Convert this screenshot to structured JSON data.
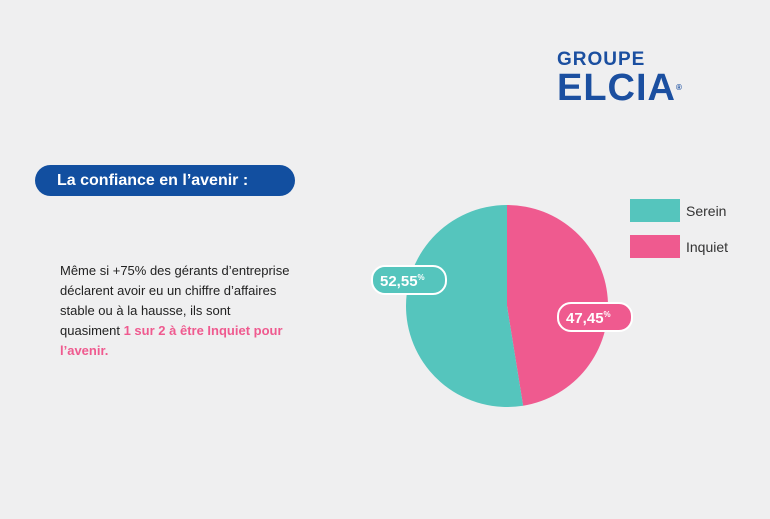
{
  "logo": {
    "line1": "GROUPE",
    "line2": "ELCIA",
    "mark": "®"
  },
  "heading": "La confiance en l’avenir :",
  "paragraph": {
    "text": "Même si +75% des gérants d’entreprise déclarent avoir eu un chiffre d’affaires stable ou à la hausse, ils sont quasiment ",
    "highlight": "1 sur 2 à être Inquiet pour l’avenir."
  },
  "colors": {
    "serein": "#55c5bd",
    "inquiet": "#ef5a8f",
    "brand": "#124fa0"
  },
  "chart_data": {
    "type": "pie",
    "categories": [
      "Serein",
      "Inquiet"
    ],
    "values": [
      52.55,
      47.45
    ],
    "labels": [
      "52,55",
      "47,45"
    ],
    "unit": "%",
    "legend_position": "top-right"
  }
}
